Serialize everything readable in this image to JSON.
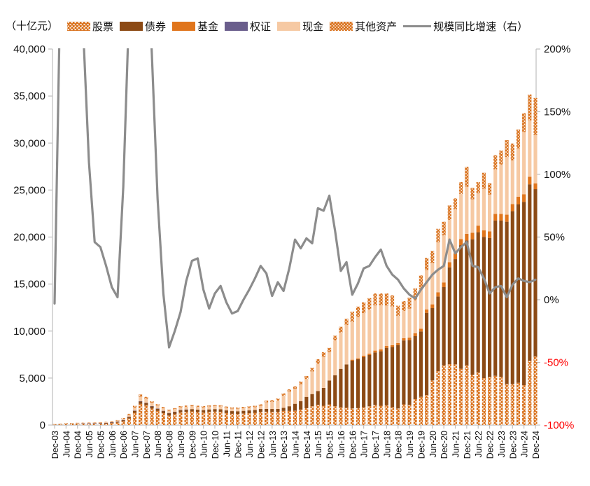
{
  "title": "（十亿元）",
  "legend": [
    {
      "label": "股票",
      "type": "pattern-dash",
      "color": "#D9711C"
    },
    {
      "label": "债券",
      "type": "solid",
      "color": "#8C4A15"
    },
    {
      "label": "基金",
      "type": "solid",
      "color": "#E0751C"
    },
    {
      "label": "权证",
      "type": "solid",
      "color": "#6A5E8C"
    },
    {
      "label": "现金",
      "type": "solid",
      "color": "#F6C9A3"
    },
    {
      "label": "其他资产",
      "type": "pattern-dot",
      "color": "#D9711C"
    },
    {
      "label": "规模同比增速（右）",
      "type": "line",
      "color": "#8C8C8C"
    }
  ],
  "chart_data": {
    "type": "bar",
    "subtype": "stacked-bars-quarterly-with-yoy-line",
    "title": "（十亿元）",
    "xlabel": "",
    "ylabel_left": "十亿元",
    "ylabel_right": "规模同比增速",
    "left_axis": {
      "min": 0,
      "max": 40000,
      "step": 5000,
      "label_color": "#111111"
    },
    "right_axis": {
      "min": -100,
      "max": 200,
      "step": 50,
      "unit": "%",
      "label_color": "#111111",
      "negative_label_color": "#FF0000"
    },
    "grid": false,
    "axis_color": "#BFBFBF",
    "x_labels": [
      "Dec-03",
      "Jun-04",
      "Dec-04",
      "Jun-05",
      "Dec-05",
      "Jun-06",
      "Dec-06",
      "Jun-07",
      "Dec-07",
      "Jun-08",
      "Dec-08",
      "Jun-09",
      "Dec-09",
      "Jun-10",
      "Dec-10",
      "Jun-11",
      "Dec-11",
      "Jun-12",
      "Dec-12",
      "Jun-13",
      "Dec-13",
      "Jun-14",
      "Dec-14",
      "Jun-15",
      "Dec-15",
      "Jun-16",
      "Dec-16",
      "Jun-17",
      "Dec-17",
      "Jun-18",
      "Dec-18",
      "Jun-19",
      "Dec-19",
      "Jun-20",
      "Dec-20",
      "Jun-21",
      "Dec-21",
      "Jun-22",
      "Dec-22",
      "Jun-23",
      "Dec-23",
      "Jun-24",
      "Dec-24"
    ],
    "bars_per_label": 2,
    "note": "bars are quarterly from Dec-03 to Dec-24 (85 bars); x_labels mark every second bar; values in 十亿元 (billion yuan)",
    "series": [
      {
        "name": "股票",
        "style": "pattern-dash",
        "color": "#D9711C",
        "values": [
          45,
          70,
          95,
          105,
          110,
          115,
          120,
          125,
          130,
          150,
          200,
          260,
          400,
          700,
          1300,
          2250,
          2100,
          1750,
          1500,
          1250,
          1000,
          1150,
          1350,
          1400,
          1450,
          1380,
          1330,
          1400,
          1430,
          1400,
          1280,
          1200,
          1180,
          1220,
          1260,
          1300,
          1400,
          1420,
          1400,
          1400,
          1500,
          1500,
          1520,
          1650,
          1790,
          2000,
          2160,
          2050,
          2200,
          2000,
          1885,
          1850,
          1765,
          1800,
          1885,
          2000,
          2140,
          2050,
          2100,
          1900,
          1765,
          2200,
          2140,
          2760,
          3000,
          3200,
          4740,
          5735,
          6355,
          6480,
          6450,
          5980,
          6355,
          5360,
          5610,
          4990,
          5115,
          5235,
          5115,
          4370,
          4370,
          4490,
          4245,
          6850,
          7300
        ]
      },
      {
        "name": "债券",
        "style": "solid",
        "color": "#8C4A15",
        "values": [
          25,
          35,
          45,
          50,
          55,
          60,
          65,
          70,
          75,
          85,
          100,
          115,
          140,
          180,
          230,
          280,
          270,
          260,
          250,
          260,
          280,
          270,
          260,
          255,
          250,
          255,
          260,
          265,
          270,
          275,
          280,
          285,
          290,
          295,
          300,
          305,
          310,
          300,
          310,
          320,
          340,
          500,
          740,
          900,
          1210,
          1300,
          1465,
          1900,
          2545,
          3300,
          4095,
          4600,
          5090,
          5200,
          5340,
          5450,
          5585,
          5800,
          6115,
          6400,
          6750,
          6800,
          6900,
          6700,
          6955,
          8740,
          7700,
          7945,
          8320,
          10300,
          11200,
          13160,
          13285,
          14405,
          14905,
          15030,
          14780,
          16520,
          16640,
          17260,
          18380,
          19005,
          19500,
          18760,
          17800
        ]
      },
      {
        "name": "基金",
        "style": "solid",
        "color": "#E0751C",
        "values": [
          0,
          0,
          0,
          0,
          0,
          0,
          0,
          0,
          0,
          0,
          0,
          0,
          0,
          0,
          0,
          0,
          0,
          0,
          0,
          0,
          0,
          0,
          0,
          0,
          0,
          0,
          0,
          0,
          0,
          0,
          0,
          0,
          0,
          0,
          0,
          0,
          0,
          0,
          0,
          0,
          0,
          0,
          0,
          0,
          0,
          0,
          0,
          0,
          0,
          0,
          0,
          0,
          100,
          100,
          150,
          150,
          200,
          200,
          200,
          200,
          200,
          250,
          260,
          300,
          300,
          350,
          400,
          450,
          500,
          550,
          600,
          650,
          700,
          700,
          700,
          700,
          700,
          700,
          700,
          750,
          750,
          800,
          800,
          800,
          600
        ]
      },
      {
        "name": "权证",
        "style": "solid",
        "color": "#6A5E8C",
        "values": [
          0,
          0,
          0,
          0,
          0,
          1,
          1,
          1,
          1,
          2,
          2,
          2,
          3,
          4,
          5,
          5,
          5,
          4,
          3,
          2,
          1,
          1,
          1,
          1,
          0,
          0,
          0,
          0,
          0,
          0,
          0,
          0,
          0,
          0,
          0,
          0,
          0,
          0,
          0,
          0,
          0,
          0,
          0,
          0,
          0,
          0,
          0,
          0,
          0,
          0,
          0,
          0,
          0,
          0,
          0,
          0,
          0,
          0,
          0,
          0,
          0,
          0,
          0,
          0,
          0,
          0,
          0,
          0,
          0,
          0,
          0,
          0,
          0,
          0,
          0,
          0,
          0,
          0,
          0,
          0,
          0,
          0,
          0,
          0,
          0
        ]
      },
      {
        "name": "现金",
        "style": "solid",
        "color": "#F6C9A3",
        "values": [
          25,
          35,
          45,
          50,
          55,
          55,
          60,
          60,
          65,
          70,
          85,
          100,
          130,
          200,
          330,
          480,
          430,
          360,
          320,
          280,
          250,
          260,
          280,
          290,
          300,
          290,
          285,
          295,
          300,
          295,
          280,
          270,
          270,
          280,
          290,
          300,
          330,
          700,
          750,
          900,
          1290,
          1550,
          1600,
          1800,
          1900,
          2400,
          2900,
          3300,
          3000,
          3700,
          3870,
          4200,
          4015,
          4400,
          4535,
          4700,
          4800,
          4700,
          4300,
          4100,
          2900,
          2900,
          3100,
          3500,
          4200,
          4200,
          4400,
          5300,
          5000,
          4500,
          4700,
          4800,
          5000,
          3560,
          3430,
          4415,
          3925,
          4745,
          5245,
          6135,
          4645,
          5140,
          6625,
          6000,
          5140
        ]
      },
      {
        "name": "其他资产",
        "style": "pattern-dot",
        "color": "#D9711C",
        "values": [
          5,
          10,
          15,
          15,
          20,
          19,
          24,
          24,
          29,
          33,
          43,
          53,
          77,
          116,
          185,
          235,
          195,
          156,
          147,
          128,
          109,
          119,
          124,
          129,
          140,
          135,
          135,
          140,
          140,
          140,
          130,
          125,
          130,
          135,
          140,
          150,
          165,
          180,
          190,
          200,
          240,
          250,
          260,
          280,
          320,
          400,
          475,
          500,
          470,
          500,
          600,
          650,
          1100,
          1100,
          1150,
          1200,
          1275,
          1250,
          1285,
          1200,
          1085,
          1030,
          1155,
          1285,
          1460,
          1285,
          1280,
          1450,
          1450,
          1535,
          1160,
          1255,
          2125,
          1200,
          1200,
          1700,
          1200,
          1500,
          1500,
          1800,
          1800,
          2000,
          2000,
          2750,
          3960
        ]
      }
    ],
    "line": {
      "name": "规模同比增速（右）",
      "axis": "right",
      "color": "#8C8C8C",
      "width": 3.2,
      "values_pct": [
        -3,
        250,
        380,
        320,
        260,
        215,
        110,
        46,
        42,
        27,
        10,
        2,
        90,
        230,
        420,
        500,
        300,
        195,
        80,
        5,
        -38,
        -25,
        -10,
        15,
        31,
        33,
        8,
        -7,
        5,
        11,
        -2,
        -11,
        -9,
        0,
        8,
        17,
        27,
        21,
        3,
        14,
        7,
        25,
        48,
        41,
        49,
        45,
        73,
        71,
        83,
        55,
        23,
        30,
        4,
        13,
        25,
        27,
        34,
        40,
        27,
        20,
        16,
        9,
        4,
        1,
        8,
        14,
        20,
        24,
        27,
        48,
        37,
        42,
        46,
        27,
        26,
        17,
        5,
        10,
        11,
        2,
        12,
        17,
        15,
        14,
        16
      ],
      "clipped_above_pct": 200
    }
  }
}
